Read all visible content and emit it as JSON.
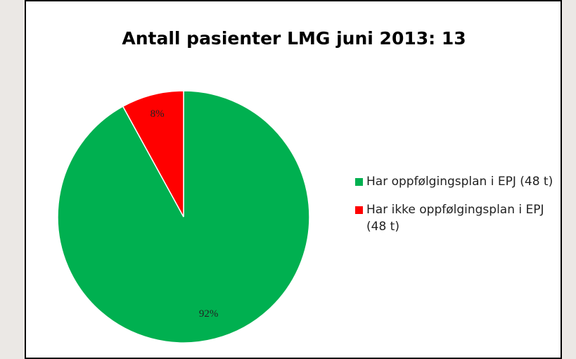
{
  "chart_data": {
    "type": "pie",
    "title": "Antall pasienter LMG juni 2013: 13",
    "categories": [
      "Har oppfølgingsplan i EPJ (48 t)",
      "Har ikke oppfølgingsplan i EPJ (48 t)"
    ],
    "values": [
      92,
      8
    ],
    "value_labels": [
      "92%",
      "8%"
    ],
    "colors": [
      "#00b050",
      "#ff0000"
    ],
    "legend": "right"
  }
}
